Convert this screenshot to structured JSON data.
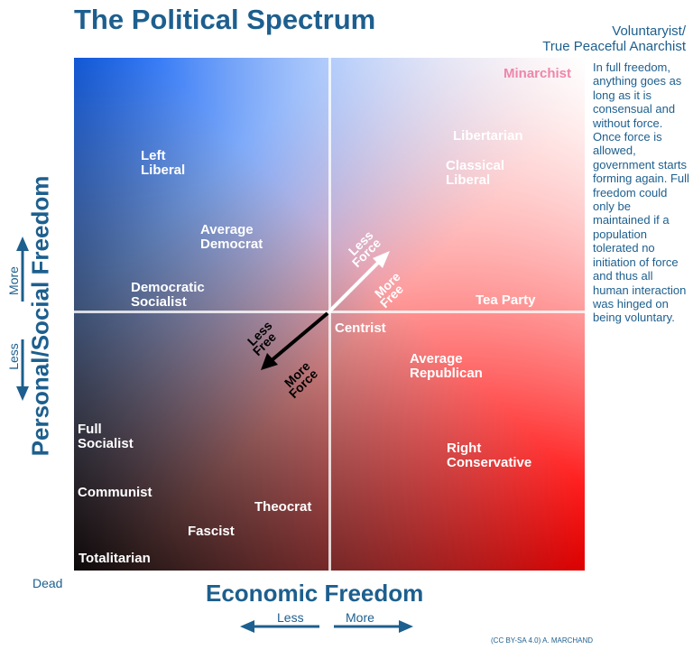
{
  "title": "The Political Spectrum",
  "corner_label": [
    "Voluntaryist/",
    "True Peaceful Anarchist"
  ],
  "side_note": "In full freedom, anything goes as long as it is consensual and without force. Once force is allowed, government starts forming again. Full freedom could only be maintained if a population tolerated no initiation of force and thus all human interaction was hinged on being voluntary.",
  "axes": {
    "y_title": "Personal/Social Freedom",
    "y_more": "More",
    "y_less": "Less",
    "x_title": "Economic Freedom",
    "x_less": "Less",
    "x_more": "More",
    "origin_label": "Dead"
  },
  "positions": {
    "minarchist": "Minarchist",
    "libertarian": "Libertarian",
    "classical_liberal": "Classical\nLiberal",
    "tea_party": "Tea Party",
    "left_liberal": "Left\nLiberal",
    "average_democrat": "Average\nDemocrat",
    "democratic_socialist": "Democratic\nSocialist",
    "centrist": "Centrist",
    "average_republican": "Average\nRepublican",
    "full_socialist": "Full\nSocialist",
    "right_conservative": "Right\nConservative",
    "communist": "Communist",
    "theocrat": "Theocrat",
    "fascist": "Fascist",
    "totalitarian": "Totalitarian"
  },
  "arrows": {
    "up_less": "Less",
    "up_force": "Force",
    "up_more": "More",
    "up_free": "Free",
    "down_less": "Less",
    "down_free": "Free",
    "down_more": "More",
    "down_force": "Force"
  },
  "credit": "(CC BY-SA 4.0) A. MARCHAND",
  "colors": {
    "title_blue": "#1d5f8e",
    "top_left": "#1464f4",
    "bottom_right": "#ff0000",
    "top_right": "#ffffff",
    "bottom_left": "#000000",
    "minarchist_pink": "#ee86aa"
  }
}
